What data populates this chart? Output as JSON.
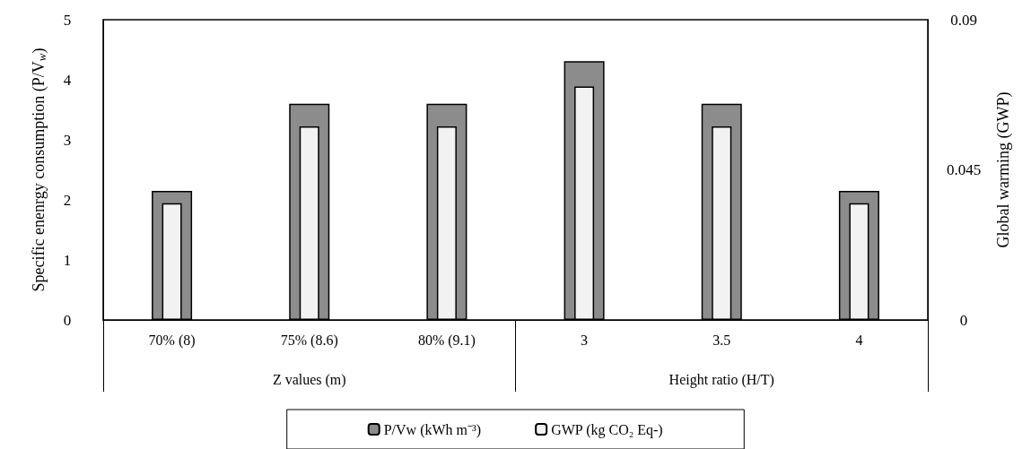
{
  "chart_data": {
    "type": "bar",
    "categories": [
      "70% (8)",
      "75% (8.6)",
      "80% (9.1)",
      "3",
      "3.5",
      "4"
    ],
    "series": [
      {
        "name": "P/Vw (kWh m⁻³)",
        "color": "#8c8c8c",
        "values": [
          2.15,
          3.6,
          3.6,
          4.31,
          3.6,
          2.15
        ]
      },
      {
        "name": "GWP (kg CO₂ Eq-)",
        "color": "#f2f2f2",
        "values": [
          0.035,
          0.058,
          0.058,
          0.07,
          0.058,
          0.035
        ],
        "axis": "y2"
      }
    ],
    "ylabel": "Specific enenrgy consumption (P/V$_{w}$)",
    "y2label": "Global warming (GWP)",
    "ylim": [
      0,
      5
    ],
    "yticks": [
      0,
      1,
      2,
      3,
      4,
      5
    ],
    "y2lim": [
      0,
      0.09
    ],
    "y2ticks": [
      0,
      0.045,
      0.09
    ],
    "annotations": [
      "Z values (m)",
      "Height ratio (H/T)"
    ],
    "legend": "bottom"
  }
}
